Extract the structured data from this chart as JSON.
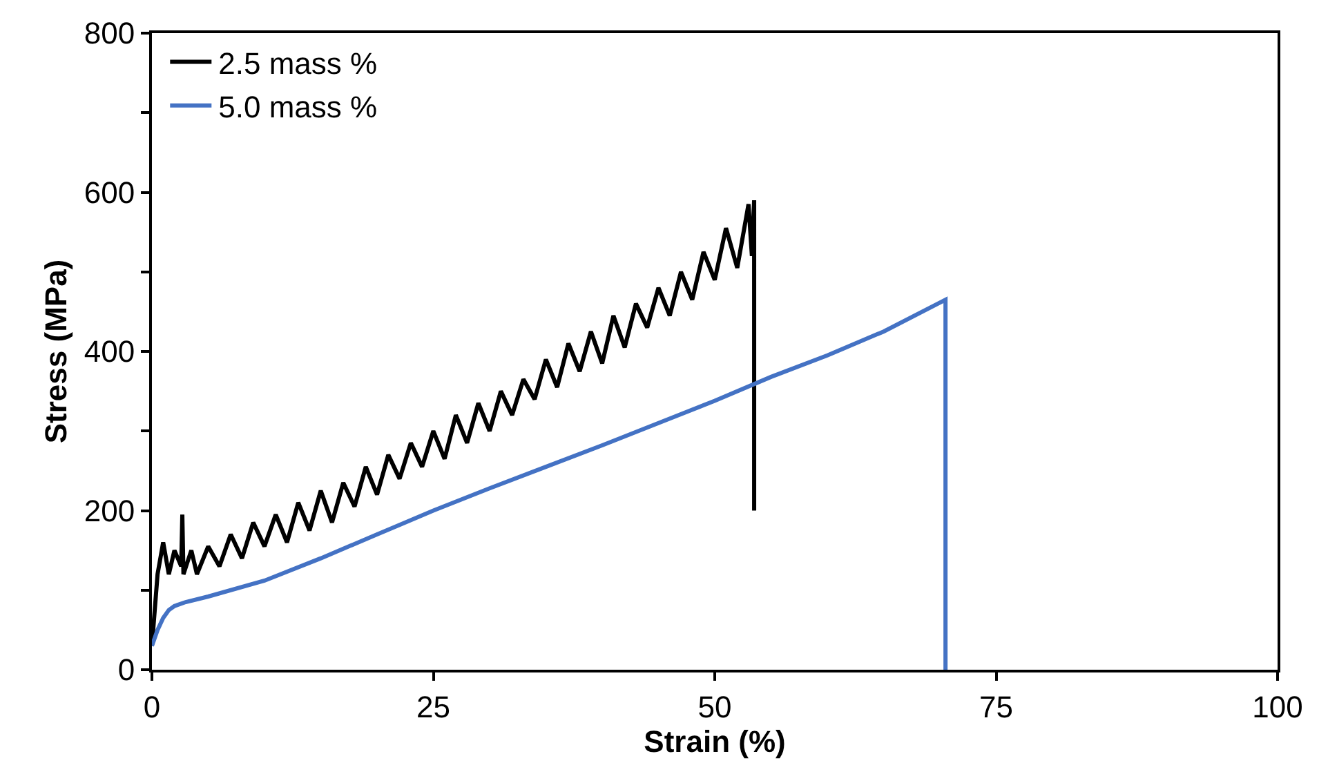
{
  "chart_data": {
    "type": "line",
    "xlabel": "Strain (%)",
    "ylabel": "Stress (MPa)",
    "xlim": [
      0,
      100
    ],
    "xticks": [
      0,
      25,
      50,
      75,
      100
    ],
    "ylim": [
      0,
      800
    ],
    "yticks": [
      0,
      {
        "value": 100,
        "label": null
      },
      200,
      {
        "value": 300,
        "label": null
      },
      400,
      {
        "value": 500,
        "label": null
      },
      600,
      {
        "value": 700,
        "label": null
      },
      800
    ],
    "legend": "top left",
    "marker": "none",
    "line_style": "solid",
    "series": [
      {
        "name": "2.5 mass %",
        "color": "#000000",
        "x": [
          0,
          0.5,
          1,
          1.5,
          2,
          2.6,
          2.7,
          2.8,
          3.5,
          4,
          5,
          6,
          7,
          8,
          9,
          10,
          11,
          12,
          13,
          14,
          15,
          16,
          17,
          18,
          19,
          20,
          21,
          22,
          23,
          24,
          25,
          26,
          27,
          28,
          29,
          30,
          31,
          32,
          33,
          34,
          35,
          36,
          37,
          38,
          39,
          40,
          41,
          42,
          43,
          44,
          45,
          46,
          47,
          48,
          49,
          50,
          51,
          52,
          53,
          53.3,
          53.5,
          53.5
        ],
        "values": [
          30,
          120,
          160,
          120,
          150,
          130,
          195,
          120,
          150,
          120,
          155,
          130,
          170,
          140,
          185,
          155,
          195,
          160,
          210,
          175,
          225,
          185,
          235,
          205,
          255,
          220,
          270,
          240,
          285,
          255,
          300,
          265,
          320,
          285,
          335,
          300,
          350,
          320,
          365,
          340,
          390,
          355,
          410,
          375,
          425,
          385,
          445,
          405,
          460,
          430,
          480,
          445,
          500,
          465,
          525,
          490,
          555,
          505,
          585,
          520,
          590,
          200
        ]
      },
      {
        "name": "5.0 mass %",
        "color": "#4472c4",
        "x": [
          0,
          0.5,
          1,
          1.5,
          2,
          3,
          5,
          10,
          15,
          20,
          25,
          30,
          35,
          40,
          45,
          50,
          55,
          60,
          65,
          70.5,
          70.5
        ],
        "values": [
          30,
          50,
          65,
          75,
          80,
          85,
          92,
          112,
          140,
          170,
          200,
          228,
          255,
          282,
          310,
          338,
          368,
          395,
          425,
          465,
          0
        ]
      }
    ]
  }
}
